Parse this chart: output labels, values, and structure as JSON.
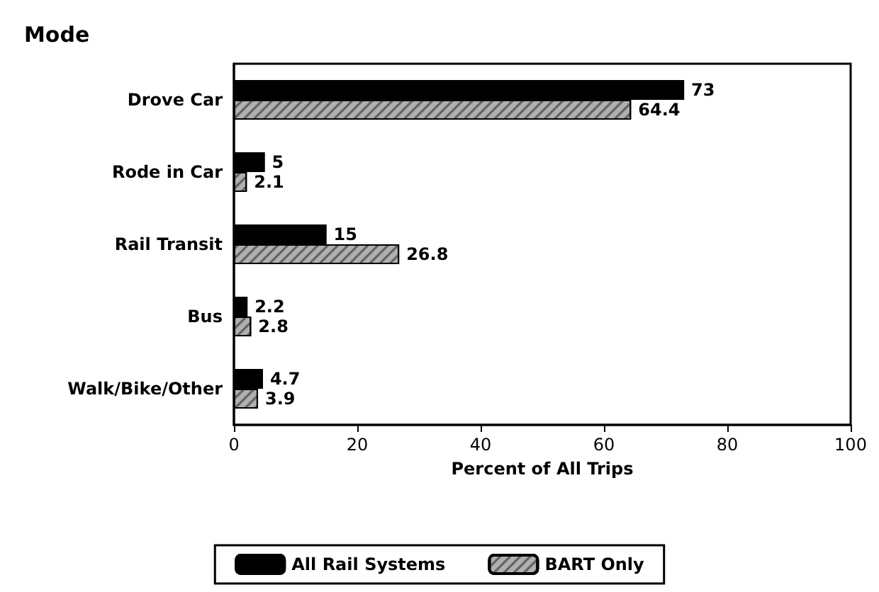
{
  "chart_data": {
    "type": "bar",
    "orientation": "horizontal",
    "ylabel": "Mode",
    "xlabel": "Percent of All Trips",
    "categories": [
      "Drove Car",
      "Rode in Car",
      "Rail Transit",
      "Bus",
      "Walk/Bike/Other"
    ],
    "series": [
      {
        "name": "All Rail Systems",
        "color": "#000000",
        "values": [
          73,
          5,
          15,
          2.2,
          4.7
        ]
      },
      {
        "name": "BART Only",
        "color": "#b0b0b0",
        "values": [
          64.4,
          2.1,
          26.8,
          2.8,
          3.9
        ]
      }
    ],
    "xlim": [
      0,
      100
    ],
    "xticks": [
      0,
      20,
      40,
      60,
      80,
      100
    ],
    "grid": false,
    "legend": "bottom",
    "data_labels": true
  }
}
